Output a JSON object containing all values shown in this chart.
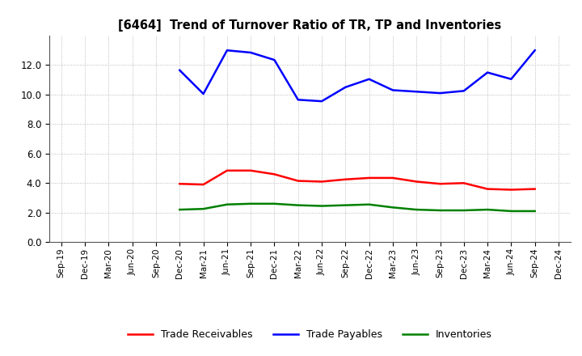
{
  "title": "[6464]  Trend of Turnover Ratio of TR, TP and Inventories",
  "x_labels": [
    "Sep-19",
    "Dec-19",
    "Mar-20",
    "Jun-20",
    "Sep-20",
    "Dec-20",
    "Mar-21",
    "Jun-21",
    "Sep-21",
    "Dec-21",
    "Mar-22",
    "Jun-22",
    "Sep-22",
    "Dec-22",
    "Mar-23",
    "Jun-23",
    "Sep-23",
    "Dec-23",
    "Mar-24",
    "Jun-24",
    "Sep-24",
    "Dec-24"
  ],
  "trade_receivables": [
    null,
    null,
    null,
    null,
    null,
    3.95,
    3.9,
    4.85,
    4.85,
    4.6,
    4.15,
    4.1,
    4.25,
    4.35,
    4.35,
    4.1,
    3.95,
    4.0,
    3.6,
    3.55,
    3.6,
    null
  ],
  "trade_payables": [
    null,
    null,
    null,
    null,
    null,
    11.65,
    10.05,
    13.0,
    12.85,
    12.35,
    9.65,
    9.55,
    10.5,
    11.05,
    10.3,
    10.2,
    10.1,
    10.25,
    11.5,
    11.05,
    13.0,
    null
  ],
  "inventories": [
    null,
    null,
    null,
    null,
    null,
    2.2,
    2.25,
    2.55,
    2.6,
    2.6,
    2.5,
    2.45,
    2.5,
    2.55,
    2.35,
    2.2,
    2.15,
    2.15,
    2.2,
    2.1,
    2.1,
    null
  ],
  "ylim": [
    0.0,
    14.0
  ],
  "yticks": [
    0.0,
    2.0,
    4.0,
    6.0,
    8.0,
    10.0,
    12.0
  ],
  "color_tr": "#ff0000",
  "color_tp": "#0000ff",
  "color_inv": "#008000",
  "legend_tr": "Trade Receivables",
  "legend_tp": "Trade Payables",
  "legend_inv": "Inventories",
  "bg_color": "#ffffff",
  "grid_color": "#aaaaaa",
  "linewidth": 1.8
}
